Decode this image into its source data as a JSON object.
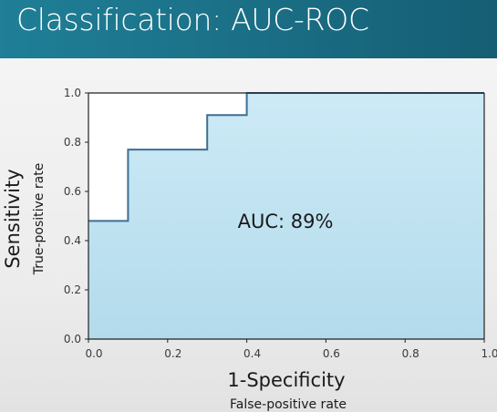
{
  "header": {
    "title": "Classification: AUC-ROC"
  },
  "chart_data": {
    "type": "line",
    "x": [
      0.0,
      0.1,
      0.1,
      0.3,
      0.3,
      0.4,
      0.4,
      1.0
    ],
    "y": [
      0.48,
      0.48,
      0.77,
      0.77,
      0.91,
      0.91,
      1.0,
      1.0
    ],
    "xlim": [
      0,
      1
    ],
    "ylim": [
      0,
      1
    ],
    "xticks": [
      "0.0",
      "0.2",
      "0.4",
      "0.6",
      "0.8",
      "1.0"
    ],
    "yticks": [
      "0.0",
      "0.2",
      "0.4",
      "0.6",
      "0.8",
      "1.0"
    ],
    "xlabel": "1-Specificity",
    "xlabel_sub": "False-positive rate",
    "ylabel": "Sensitivity",
    "ylabel_sub": "True-positive rate",
    "annotation": "AUC: 89%",
    "line_color": "#3d6f93",
    "fill_color": "#cdeaf6",
    "grid": false
  }
}
